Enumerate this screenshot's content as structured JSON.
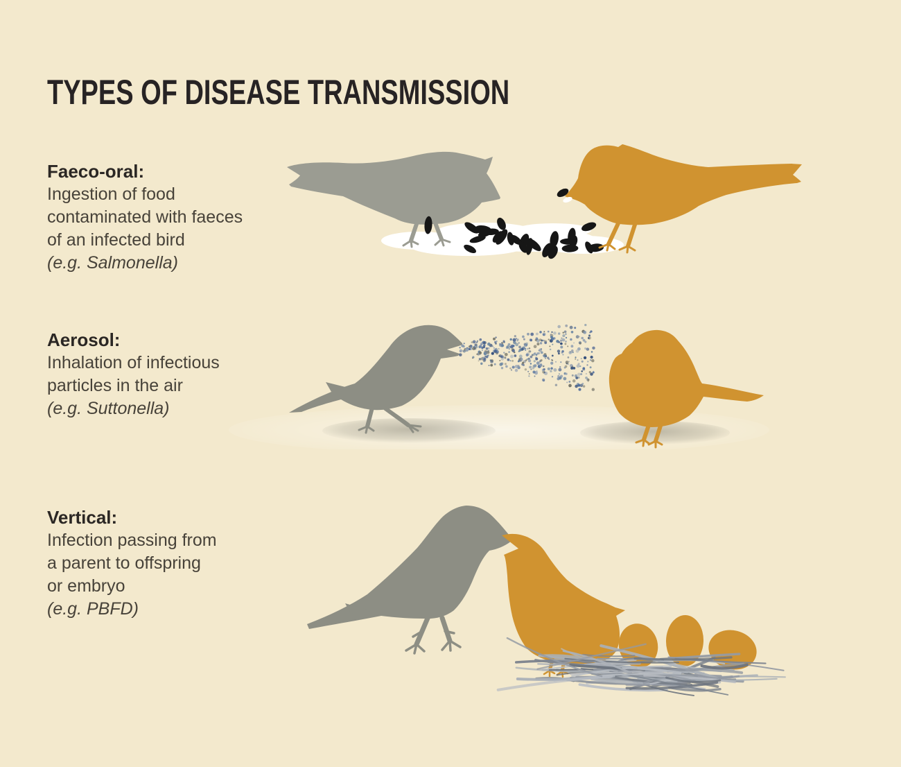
{
  "title": "TYPES OF DISEASE TRANSMISSION",
  "sections": [
    {
      "id": "faeco-oral",
      "heading": "Faeco-oral:",
      "description_lines": [
        "Ingestion of food",
        "contaminated with faeces",
        "of an infected bird"
      ],
      "example": "(e.g. Salmonella)"
    },
    {
      "id": "aerosol",
      "heading": "Aerosol:",
      "description_lines": [
        "Inhalation of infectious",
        "particles in the air"
      ],
      "example": "(e.g. Suttonella)"
    },
    {
      "id": "vertical",
      "heading": "Vertical:",
      "description_lines": [
        "Infection passing from",
        "a parent to offspring",
        "or embryo"
      ],
      "example": "(e.g. PBFD)"
    }
  ],
  "colors": {
    "background": "#f3e9cd",
    "title_text": "#272324",
    "heading_text": "#2b2724",
    "body_text": "#474239",
    "grey_light": "#9b9c92",
    "grey": "#8d8e84",
    "orange": "#d09330",
    "seed_black": "#161616",
    "straw_colors": [
      "#949aa3",
      "#aab0b7",
      "#7e858f",
      "#6d747e",
      "#b8bdc3"
    ],
    "aerosol_colors": [
      "#4a699b",
      "#62809f",
      "#35507c",
      "#8295ad",
      "#76766a",
      "#98a5b5",
      "#5a6f96"
    ]
  }
}
